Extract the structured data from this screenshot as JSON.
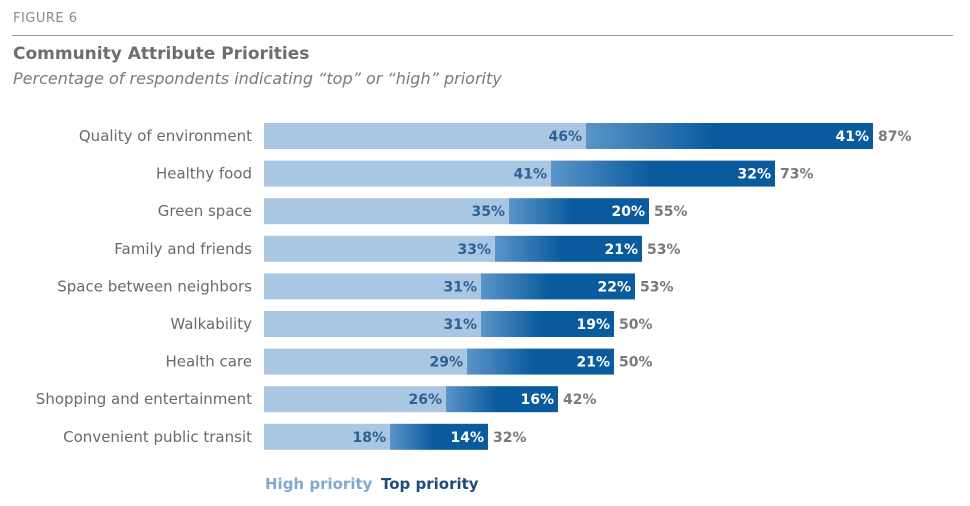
{
  "figure_label": "FIGURE 6",
  "chart_data": {
    "type": "bar",
    "orientation": "horizontal",
    "stacked": true,
    "title": "Community Attribute Priorities",
    "subtitle": "Percentage of respondents indicating “top” or “high” priority",
    "categories": [
      "Quality of environment",
      "Healthy  food",
      "Green space",
      "Family and friends",
      "Space between neighbors",
      "Walkability",
      "Health care",
      "Shopping and entertainment",
      "Convenient public transit"
    ],
    "series": [
      {
        "name": "High priority",
        "values": [
          46,
          41,
          35,
          33,
          31,
          31,
          29,
          26,
          18
        ],
        "color": "#a9c7e3"
      },
      {
        "name": "Top priority",
        "values": [
          41,
          32,
          20,
          21,
          22,
          19,
          21,
          16,
          14
        ],
        "color": "#0a5a9e"
      }
    ],
    "totals": [
      87,
      73,
      55,
      53,
      53,
      50,
      50,
      42,
      32
    ],
    "value_suffix": "%",
    "legend_position": "bottom-left",
    "grid": false,
    "colors": {
      "high_bar": "#a9c7e3",
      "high_text": "#2e5f95",
      "top_start": "#5b95c8",
      "top_end": "#0a5a9e",
      "top_text": "#ffffff",
      "legend_high": "#7fa9d0",
      "legend_top": "#1d4a7c"
    }
  },
  "legend": {
    "high_label": "High priority",
    "top_label": "Top priority"
  }
}
